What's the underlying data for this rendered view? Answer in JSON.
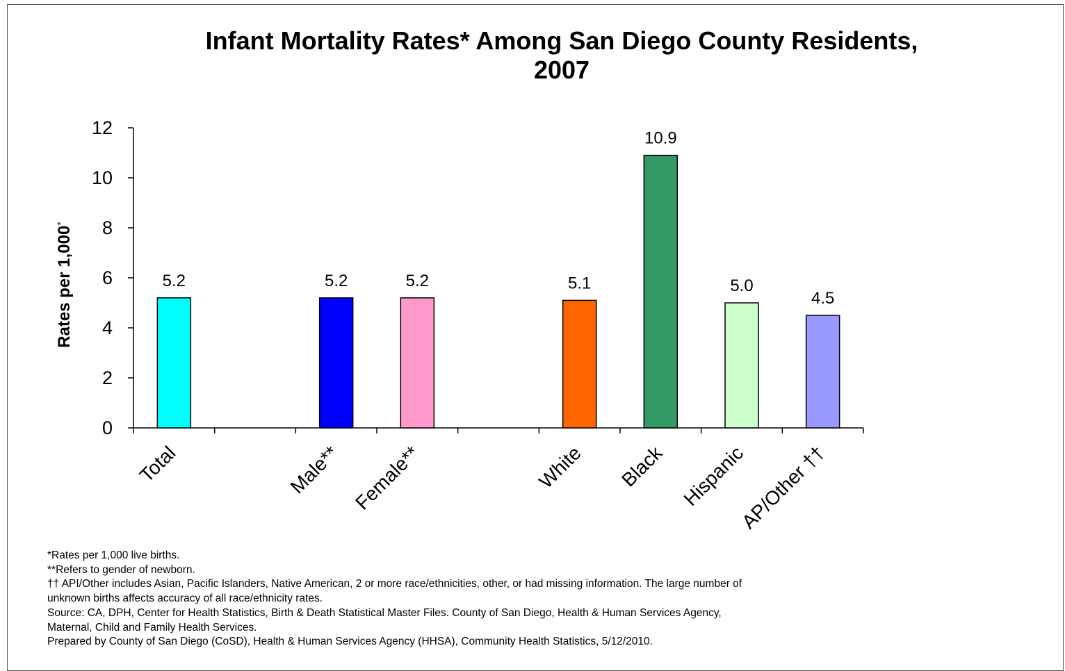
{
  "chart_data": {
    "type": "bar",
    "title": "Infant Mortality Rates* Among San Diego County Residents, 2007",
    "title_lines": [
      "Infant Mortality Rates* Among San Diego County Residents,",
      "2007"
    ],
    "ylabel": "Rates per 1,000",
    "ylabel_sup": "*",
    "ylim": [
      0,
      12
    ],
    "yticks": [
      "0",
      "2",
      "4",
      "6",
      "8",
      "10",
      "12"
    ],
    "grid": false,
    "categories": [
      "Total",
      "",
      "Male**",
      "Female**",
      "",
      "White",
      "Black",
      "Hispanic",
      "AP/Other ††"
    ],
    "values": [
      5.2,
      null,
      5.2,
      5.2,
      null,
      5.1,
      10.9,
      5.0,
      4.5
    ],
    "value_labels": [
      "5.2",
      "",
      "5.2",
      "5.2",
      "",
      "5.1",
      "10.9",
      "5.0",
      "4.5"
    ],
    "colors": [
      "#00FFFF",
      "",
      "#0000FF",
      "#FF99CC",
      "",
      "#FF6600",
      "#339966",
      "#CCFFCC",
      "#9999FF"
    ]
  },
  "notes": [
    "*Rates per 1,000 live births.",
    "**Refers to gender of newborn.",
    "†† API/Other includes Asian, Pacific Islanders, Native American, 2 or more race/ethnicities, other, or had missing information. The large number of",
    "unknown births affects accuracy of all race/ethnicity rates.",
    "Source: CA, DPH, Center for Health Statistics, Birth & Death Statistical Master Files. County of San Diego, Health & Human Services Agency,",
    "Maternal, Child and Family Health Services.",
    "Prepared by County of San Diego (CoSD), Health & Human Services Agency (HHSA), Community Health Statistics, 5/12/2010."
  ]
}
